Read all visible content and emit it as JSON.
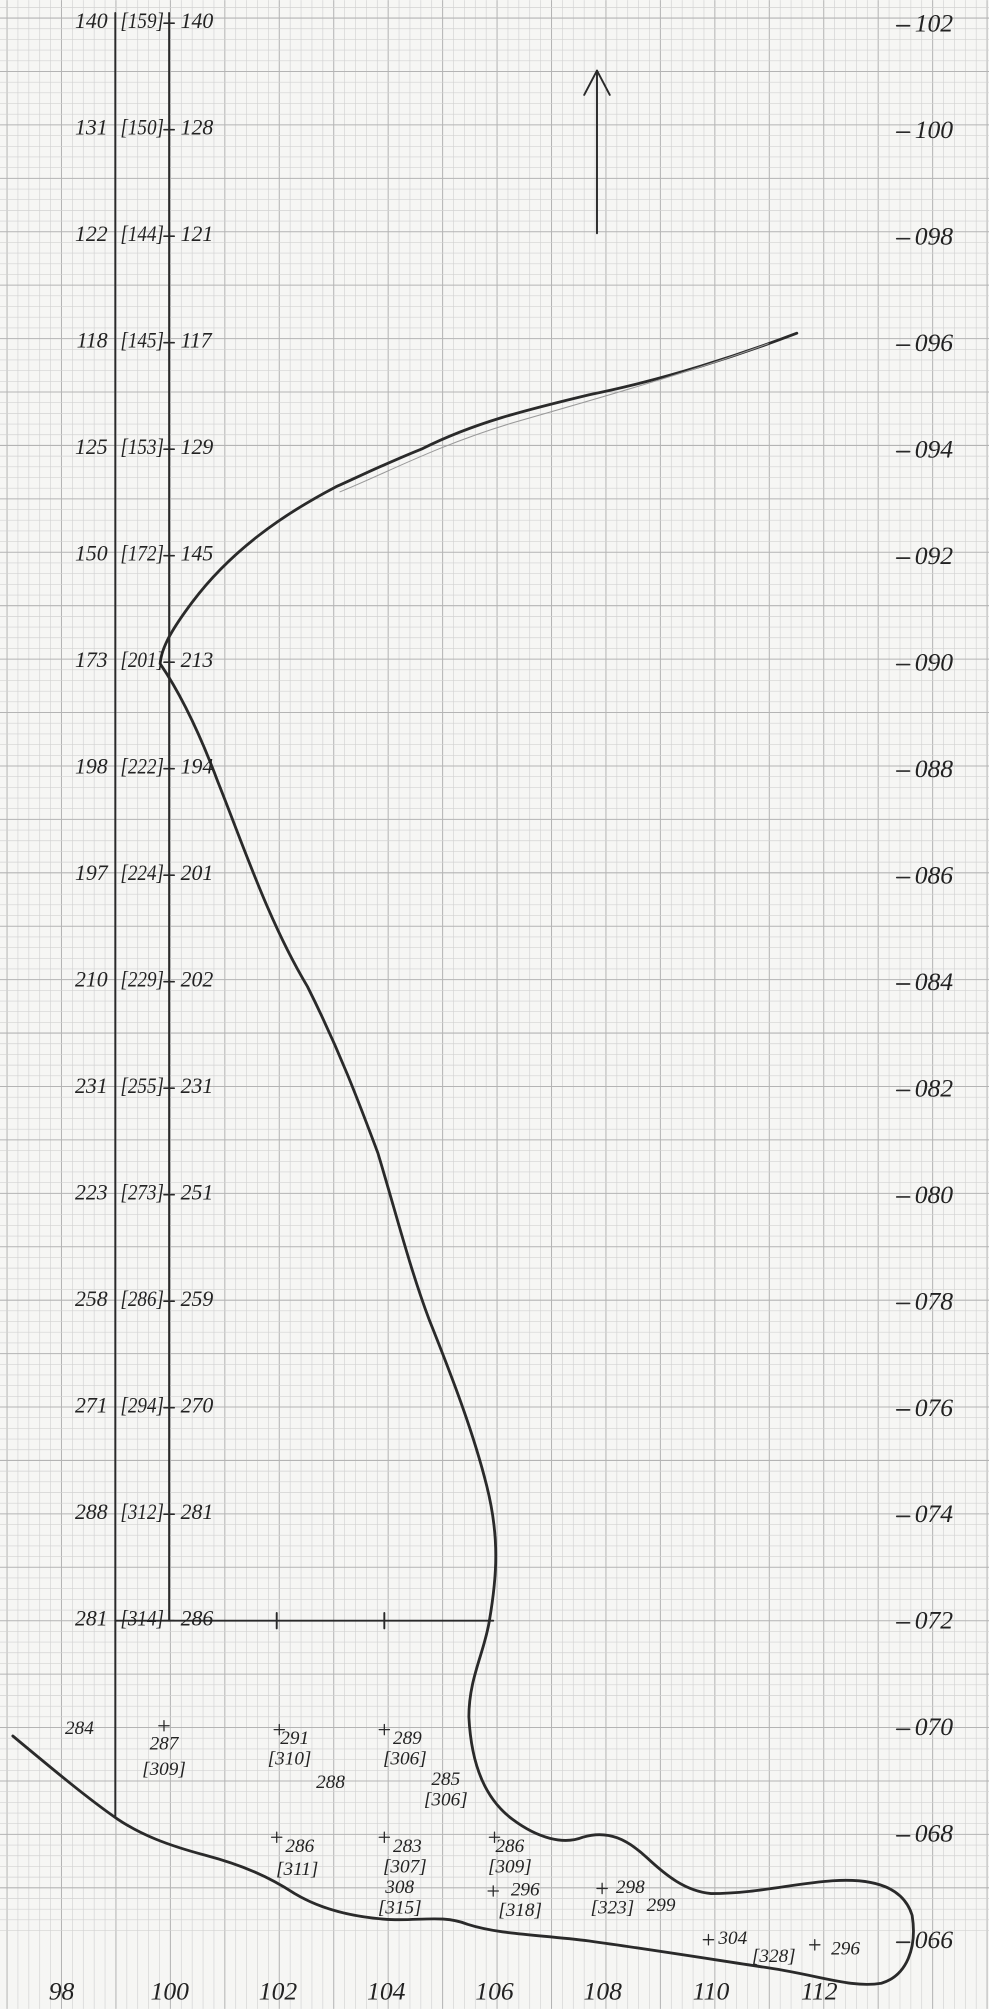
{
  "rows": [
    {
      "left": "140",
      "bracket": "[159]",
      "right": "140"
    },
    {
      "left": "131",
      "bracket": "[150]",
      "right": "128"
    },
    {
      "left": "122",
      "bracket": "[144]",
      "right": "121"
    },
    {
      "left": "118",
      "bracket": "[145]",
      "right": "117"
    },
    {
      "left": "125",
      "bracket": "[153]",
      "right": "129"
    },
    {
      "left": "150",
      "bracket": "[172]",
      "right": "145"
    },
    {
      "left": "173",
      "bracket": "[201]",
      "right": "213"
    },
    {
      "left": "198",
      "bracket": "[222]",
      "right": "194"
    },
    {
      "left": "197",
      "bracket": "[224]",
      "right": "201"
    },
    {
      "left": "210",
      "bracket": "[229]",
      "right": "202"
    },
    {
      "left": "231",
      "bracket": "[255]",
      "right": "231"
    },
    {
      "left": "223",
      "bracket": "[273]",
      "right": "251"
    },
    {
      "left": "258",
      "bracket": "[286]",
      "right": "259"
    },
    {
      "left": "271",
      "bracket": "[294]",
      "right": "270"
    },
    {
      "left": "288",
      "bracket": "[312]",
      "right": "281"
    },
    {
      "left": "281",
      "bracket": "[314]",
      "right": "286"
    }
  ],
  "right_axis": [
    "102",
    "100",
    "098",
    "096",
    "094",
    "092",
    "090",
    "088",
    "086",
    "084",
    "082",
    "080",
    "078",
    "076",
    "074",
    "072",
    "070",
    "068",
    "066"
  ],
  "bottom_axis": [
    "98",
    "100",
    "102",
    "104",
    "106",
    "108",
    "110",
    "112"
  ],
  "annotations": [
    "284",
    "287",
    "[309]",
    "291",
    "[310]",
    "288",
    "289",
    "[306]",
    "285",
    "[306]",
    "286",
    "[311]",
    "283",
    "[307]",
    "308",
    "[315]",
    "286",
    "[309]",
    "296",
    "[318]",
    "298",
    "[323]",
    "299",
    "304",
    "[328]",
    "296"
  ]
}
